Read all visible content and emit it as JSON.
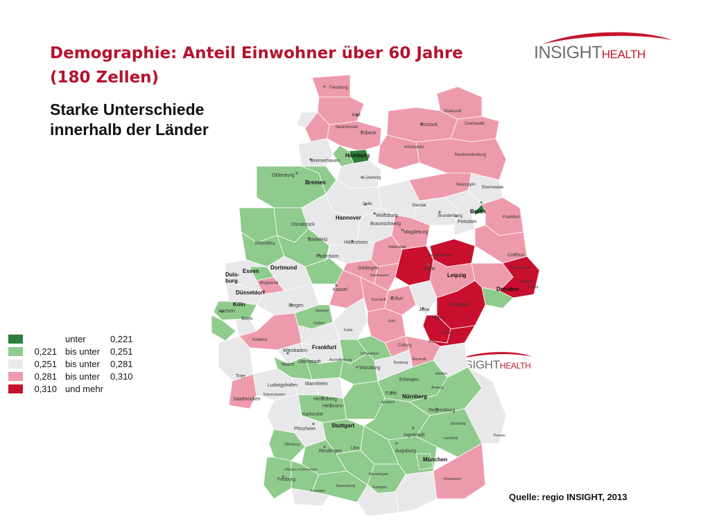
{
  "slide": {
    "title_line1": "Demographie: Anteil Einwohner über 60 Jahre",
    "title_line2": "(180 Zellen)",
    "subtitle_line1": "Starke Unterschiede",
    "subtitle_line2": "innerhalb der Länder",
    "source": "Quelle: regio INSIGHT, 2013"
  },
  "logo": {
    "brand_bold": "INSIGHT",
    "brand_red": "HEALTH",
    "accent_color": "#c5162d",
    "text_color": "#6e6e6e"
  },
  "legend": [
    {
      "lower": "",
      "op": "unter",
      "upper": "0,221",
      "color": "#2e7d3a"
    },
    {
      "lower": "0,221",
      "op": "bis unter",
      "upper": "0,251",
      "color": "#8fcb8c"
    },
    {
      "lower": "0,251",
      "op": "bis unter",
      "upper": "0,281",
      "color": "#e8e8ea"
    },
    {
      "lower": "0,281",
      "op": "bis unter",
      "upper": "0,310",
      "color": "#ee9aad"
    },
    {
      "lower": "0,310",
      "op": "und mehr",
      "upper": "",
      "color": "#c8102e"
    }
  ],
  "cities": {
    "flensburg": "Flensburg",
    "kiel": "Kiel",
    "stralsund": "Stralsund",
    "rostock": "Rostock",
    "greifswald": "Greifswald",
    "neumuenster": "Neumünster",
    "luebeck": "Lübeck",
    "schwerin": "Schwerin",
    "hamburg": "Hamburg",
    "bremerhaven": "Bremerhaven",
    "neubrandenburg": "Neubrandenburg",
    "oldenburg": "Oldenburg",
    "bremen": "Bremen",
    "lueneburg": "Lüneburg",
    "neuruppin": "Neuruppin",
    "eberswalde": "Eberswalde",
    "celle": "Celle",
    "stendal": "Stendal",
    "berlin": "Berlin",
    "hannover": "Hannover",
    "wolfsburg": "Wolfsburg",
    "braunschweig": "Braunschweig",
    "brandenburg": "Brandenburg",
    "potsdam": "Potsdam",
    "frankfurt_oder": "Frankfurt",
    "osnabrueck": "Osnabrück",
    "bielefeld": "Bielefeld",
    "magdeburg": "Magdeburg",
    "hildesheim": "Hildesheim",
    "muenster": "Münster",
    "halberstadt": "Halberstadt",
    "dessau": "Dessau-Roßlau",
    "cottbus": "Cottbus",
    "paderborn": "Paderborn",
    "goettingen": "Göttingen",
    "halle": "Halle",
    "hoyerswerda": "Hoyerswerda",
    "nordhausen": "Nordhausen",
    "essen": "Essen",
    "dortmund": "Dortmund",
    "duisburg_1": "Duis-",
    "duisburg_2": "burg",
    "leipzig": "Leipzig",
    "wuppertal": "Wuppertal",
    "kassel": "Kassel",
    "dresden": "Dresden",
    "bautzen": "Bautzen",
    "goerlitz": "Görlitz",
    "duesseldorf": "Düsseldorf",
    "eisenach": "Eisenach",
    "erfurt": "Erfurt",
    "koeln": "Köln",
    "aachen": "Aachen",
    "siegen": "Siegen",
    "marburg": "Marburg",
    "jena": "Jena",
    "chemnitz": "Chemnitz",
    "bonn": "Bonn",
    "giessen": "Gießen",
    "suhl": "Suhl",
    "zwickau": "Zwickau",
    "plauen": "Plauen",
    "fulda": "Fulda",
    "koblenz": "Koblenz",
    "coburg": "Coburg",
    "hof": "Hof",
    "frankfurt": "Frankfurt",
    "wiesbaden": "Wiesbaden",
    "schweinfurt": "Schweinfurt",
    "mainz": "Mainz",
    "darmstadt": "Darmstadt",
    "aschaffenburg": "Aschaffenburg",
    "bamberg": "Bamberg",
    "bayreuth": "Bayreuth",
    "wuerzburg": "Würzburg",
    "weiden": "Weiden",
    "trier": "Trier",
    "erlangen": "Erlangen",
    "ludwigshafen": "Ludwigshafen",
    "mannheim": "Mannheim",
    "amberg": "Amberg",
    "kaiserslautern": "Kaiserslautern",
    "fuerth": "Fürth",
    "nuernberg": "Nürnberg",
    "saarbruecken": "Saarbrücken",
    "heidelberg": "Heidelberg",
    "ansbach": "Ansbach",
    "heilbronn": "Heilbronn",
    "regensburg": "Regensburg",
    "karlsruhe": "Karlsruhe",
    "straubing": "Straubing",
    "pforzheim": "Pforzheim",
    "stuttgart": "Stuttgart",
    "passau": "Passau",
    "ingolstadt": "Ingolstadt",
    "landshut": "Landshut",
    "offenburg": "Offenburg",
    "reutlingen": "Reutlingen",
    "ulm": "Ulm",
    "augsburg": "Augsburg",
    "muenchen": "München",
    "villingen": "Villingen-Schwenningen",
    "memmingen": "Memmingen",
    "freiburg": "Freiburg",
    "rosenheim": "Rosenheim",
    "ravensburg": "Ravensburg",
    "kempten": "Kempten",
    "konstanz": "Konstanz"
  }
}
